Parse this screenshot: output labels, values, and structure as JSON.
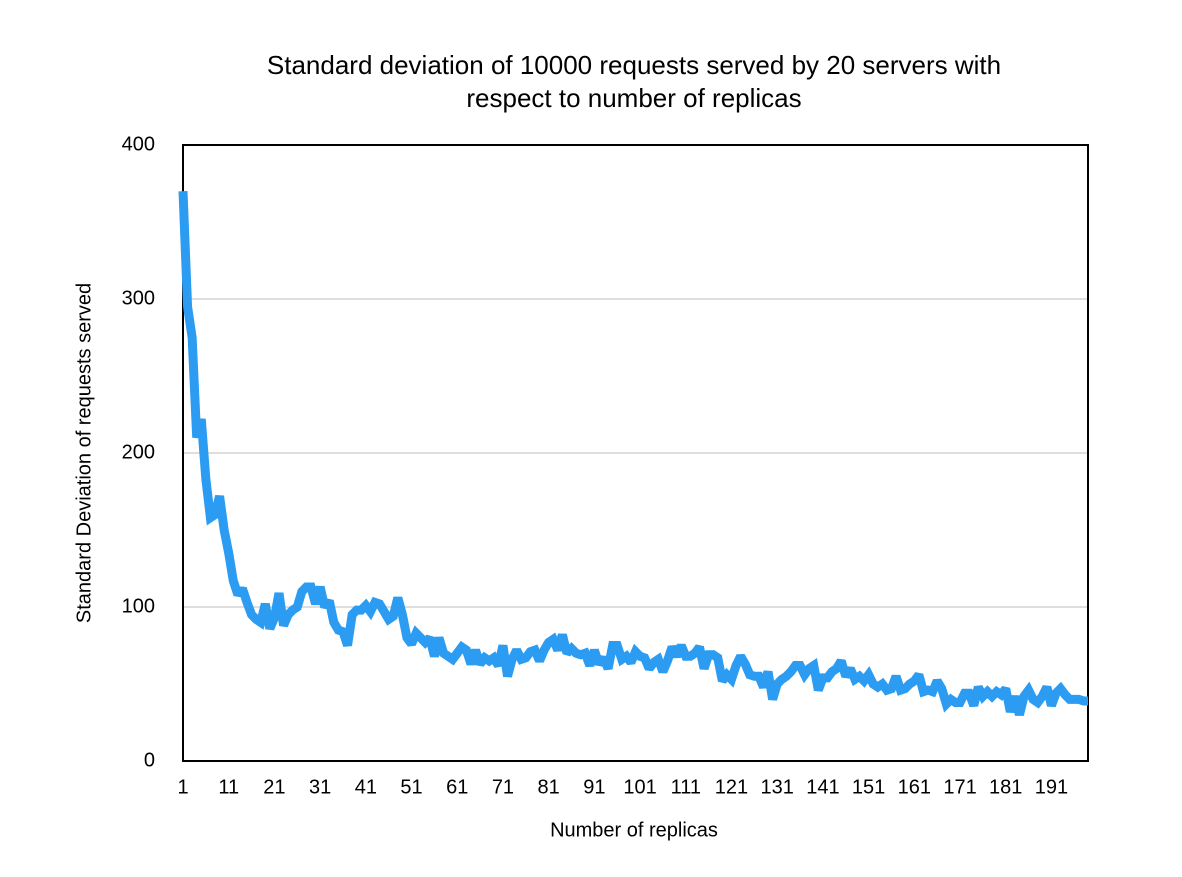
{
  "chart_data": {
    "type": "line",
    "title": [
      "Standard deviation of 10000 requests served by 20 servers with",
      "respect to number of replicas"
    ],
    "xlabel": "Number of replicas",
    "ylabel": "Standard Deviation of requests served",
    "xlim": [
      1,
      199
    ],
    "ylim": [
      0,
      400
    ],
    "xticks": [
      1,
      11,
      21,
      31,
      41,
      51,
      61,
      71,
      81,
      91,
      101,
      111,
      121,
      131,
      141,
      151,
      161,
      171,
      181,
      191
    ],
    "yticks": [
      0,
      100,
      200,
      300,
      400
    ],
    "grid": true,
    "x": [
      1,
      2,
      3,
      4,
      5,
      6,
      7,
      8,
      9,
      10,
      11,
      12,
      13,
      14,
      15,
      16,
      17,
      18,
      19,
      20,
      21,
      22,
      23,
      24,
      25,
      26,
      27,
      28,
      29,
      30,
      31,
      32,
      33,
      34,
      35,
      36,
      37,
      38,
      39,
      40,
      41,
      42,
      43,
      44,
      45,
      46,
      47,
      48,
      49,
      50,
      51,
      52,
      53,
      54,
      55,
      56,
      57,
      58,
      59,
      60,
      61,
      62,
      63,
      64,
      65,
      66,
      67,
      68,
      69,
      70,
      71,
      72,
      73,
      74,
      75,
      76,
      77,
      78,
      79,
      80,
      81,
      82,
      83,
      84,
      85,
      86,
      87,
      88,
      89,
      90,
      91,
      92,
      93,
      94,
      95,
      96,
      97,
      98,
      99,
      100,
      101,
      102,
      103,
      104,
      105,
      106,
      107,
      108,
      109,
      110,
      111,
      112,
      113,
      114,
      115,
      116,
      117,
      118,
      119,
      120,
      121,
      122,
      123,
      124,
      125,
      126,
      127,
      128,
      129,
      130,
      131,
      132,
      133,
      134,
      135,
      136,
      137,
      138,
      139,
      140,
      141,
      142,
      143,
      144,
      145,
      146,
      147,
      148,
      149,
      150,
      151,
      152,
      153,
      154,
      155,
      156,
      157,
      158,
      159,
      160,
      161,
      162,
      163,
      164,
      165,
      166,
      167,
      168,
      169,
      170,
      171,
      172,
      173,
      174,
      175,
      176,
      177,
      178,
      179,
      180,
      181,
      182,
      183,
      184,
      185,
      186,
      187,
      188,
      189,
      190,
      191,
      192,
      193,
      194,
      195,
      196,
      197,
      198,
      199
    ],
    "series": [
      {
        "name": "Standard deviation",
        "color": "#2b9cf2",
        "values": [
          370,
          295,
          275,
          210,
          222,
          183,
          158,
          160,
          172,
          150,
          135,
          117,
          108,
          112,
          103,
          95,
          92,
          90,
          102,
          86,
          93,
          109,
          88,
          95,
          98,
          100,
          110,
          113,
          113,
          102,
          113,
          100,
          104,
          90,
          85,
          84,
          75,
          95,
          98,
          98,
          101,
          97,
          103,
          102,
          97,
          92,
          94,
          106,
          95,
          80,
          76,
          83,
          80,
          77,
          80,
          68,
          80,
          70,
          68,
          66,
          70,
          74,
          72,
          63,
          72,
          63,
          67,
          65,
          67,
          62,
          75,
          55,
          66,
          72,
          66,
          67,
          71,
          72,
          65,
          72,
          77,
          79,
          72,
          82,
          70,
          73,
          70,
          69,
          70,
          62,
          72,
          63,
          67,
          60,
          75,
          75,
          66,
          68,
          64,
          71,
          68,
          67,
          60,
          64,
          66,
          58,
          65,
          74,
          68,
          75,
          68,
          68,
          70,
          74,
          60,
          69,
          69,
          67,
          52,
          56,
          53,
          62,
          68,
          63,
          56,
          55,
          55,
          48,
          58,
          40,
          50,
          53,
          55,
          58,
          62,
          62,
          56,
          60,
          62,
          46,
          54,
          54,
          58,
          60,
          65,
          55,
          60,
          53,
          55,
          52,
          56,
          50,
          48,
          50,
          46,
          47,
          55,
          46,
          47,
          50,
          52,
          56,
          45,
          46,
          45,
          52,
          47,
          37,
          40,
          38,
          38,
          44,
          44,
          36,
          48,
          42,
          45,
          42,
          45,
          43,
          47,
          32,
          42,
          30,
          42,
          46,
          40,
          38,
          42,
          48,
          36,
          44,
          47,
          43,
          40,
          40,
          40,
          39,
          39
        ]
      }
    ]
  }
}
